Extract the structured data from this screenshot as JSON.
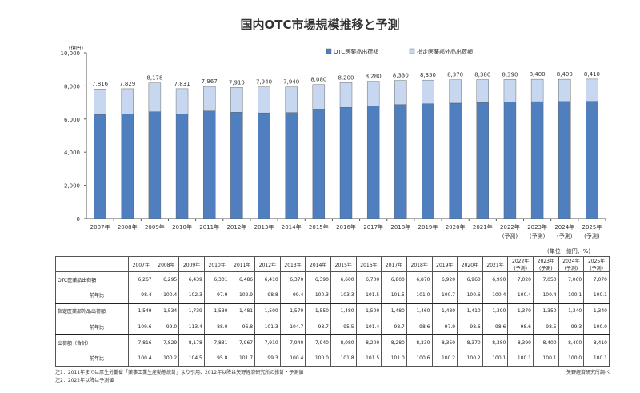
{
  "title": "国内OTC市場規模推移と予測",
  "chart_data": {
    "type": "bar",
    "stacked": true,
    "y_unit_label": "(億円)",
    "ylim": [
      0,
      10000
    ],
    "y_ticks": [
      "0",
      "2,000",
      "4,000",
      "6,000",
      "8,000",
      "10,000"
    ],
    "grid": false,
    "legend_position": "top-right",
    "categories": [
      "2007年",
      "2008年",
      "2009年",
      "2010年",
      "2011年",
      "2012年",
      "2013年",
      "2014年",
      "2015年",
      "2016年",
      "2017年",
      "2018年",
      "2019年",
      "2020年",
      "2021年",
      "2022年",
      "2023年",
      "2024年",
      "2025年"
    ],
    "forecast_marks": [
      "",
      "",
      "",
      "",
      "",
      "",
      "",
      "",
      "",
      "",
      "",
      "",
      "",
      "",
      "",
      "(予測)",
      "(予測)",
      "(予測)",
      "(予測)"
    ],
    "series": [
      {
        "name": "OTC医薬品出荷額",
        "color": "#4f7fbf",
        "values": [
          6267,
          6295,
          6439,
          6301,
          6486,
          6410,
          6370,
          6390,
          6600,
          6700,
          6800,
          6870,
          6920,
          6960,
          6990,
          7020,
          7050,
          7060,
          7070
        ]
      },
      {
        "name": "指定医薬部外品出荷額",
        "color": "#c7d7ef",
        "values": [
          1549,
          1534,
          1739,
          1530,
          1481,
          1500,
          1570,
          1550,
          1480,
          1500,
          1480,
          1460,
          1430,
          1410,
          1390,
          1370,
          1350,
          1340,
          1340
        ]
      }
    ],
    "total_labels": [
      "7,816",
      "7,829",
      "8,178",
      "7,831",
      "7,967",
      "7,910",
      "7,940",
      "7,940",
      "8,080",
      "8,200",
      "8,280",
      "8,330",
      "8,350",
      "8,370",
      "8,380",
      "8,390",
      "8,400",
      "8,400",
      "8,410"
    ]
  },
  "table": {
    "unit": "(単位：億円、%)",
    "headers": [
      "2007年",
      "2008年",
      "2009年",
      "2010年",
      "2011年",
      "2012年",
      "2013年",
      "2014年",
      "2015年",
      "2016年",
      "2017年",
      "2018年",
      "2019年",
      "2020年",
      "2021年",
      "2022年(予測)",
      "2023年(予測)",
      "2024年(予測)",
      "2025年(予測)"
    ],
    "rows": [
      {
        "label": "OTC医薬品出荷額",
        "sep": false,
        "sub": false,
        "values": [
          "6,267",
          "6,295",
          "6,439",
          "6,301",
          "6,486",
          "6,410",
          "6,370",
          "6,390",
          "6,600",
          "6,700",
          "6,800",
          "6,870",
          "6,920",
          "6,960",
          "6,990",
          "7,020",
          "7,050",
          "7,060",
          "7,070"
        ]
      },
      {
        "label": "前年比",
        "sep": false,
        "sub": true,
        "values": [
          "98.4",
          "100.4",
          "102.3",
          "97.9",
          "102.9",
          "98.8",
          "99.4",
          "100.3",
          "103.3",
          "101.5",
          "101.5",
          "101.0",
          "100.7",
          "100.6",
          "100.4",
          "100.4",
          "100.4",
          "100.1",
          "100.1"
        ]
      },
      {
        "label": "指定医薬部外品出荷額",
        "sep": true,
        "sub": false,
        "values": [
          "1,549",
          "1,534",
          "1,739",
          "1,530",
          "1,481",
          "1,500",
          "1,570",
          "1,550",
          "1,480",
          "1,500",
          "1,480",
          "1,460",
          "1,430",
          "1,410",
          "1,390",
          "1,370",
          "1,350",
          "1,340",
          "1,340"
        ]
      },
      {
        "label": "前年比",
        "sep": false,
        "sub": true,
        "values": [
          "109.6",
          "99.0",
          "113.4",
          "88.0",
          "96.8",
          "101.3",
          "104.7",
          "98.7",
          "95.5",
          "101.4",
          "98.7",
          "98.6",
          "97.9",
          "98.6",
          "98.6",
          "98.6",
          "98.5",
          "99.3",
          "100.0"
        ]
      },
      {
        "label": "出荷額（合計）",
        "sep": true,
        "sub": false,
        "values": [
          "7,816",
          "7,829",
          "8,178",
          "7,831",
          "7,967",
          "7,910",
          "7,940",
          "7,940",
          "8,080",
          "8,200",
          "8,280",
          "8,330",
          "8,350",
          "8,370",
          "8,380",
          "8,390",
          "8,400",
          "8,400",
          "8,410"
        ]
      },
      {
        "label": "前年比",
        "sep": false,
        "sub": true,
        "values": [
          "100.4",
          "100.2",
          "104.5",
          "95.8",
          "101.7",
          "99.3",
          "100.4",
          "100.0",
          "101.8",
          "101.5",
          "101.0",
          "100.6",
          "100.2",
          "100.2",
          "100.1",
          "100.1",
          "100.1",
          "100.0",
          "100.1"
        ]
      }
    ]
  },
  "notes": {
    "note1": "注1：2011年までは厚生労働省「薬事工業生産動態統計」より引用、2012年以降は矢野経済研究所の推計・予測値",
    "note2": "注2：2022年以降は予測値",
    "source": "矢野経済研究所調べ"
  }
}
